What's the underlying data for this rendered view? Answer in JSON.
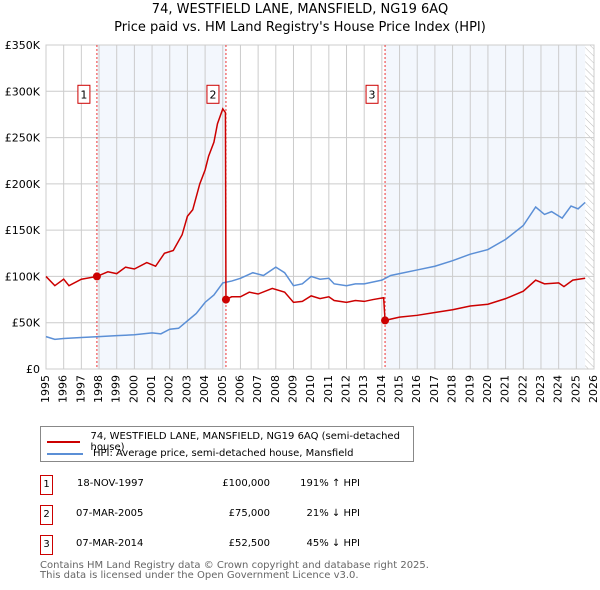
{
  "chart_data": {
    "type": "line",
    "title": "74, WESTFIELD LANE, MANSFIELD, NG19 6AQ",
    "subtitle": "Price paid vs. HM Land Registry's House Price Index (HPI)",
    "xlim": [
      1995,
      2026
    ],
    "ylim": [
      0,
      350000
    ],
    "yticks": [
      {
        "v": 0,
        "label": "£0"
      },
      {
        "v": 50000,
        "label": "£50K"
      },
      {
        "v": 100000,
        "label": "£100K"
      },
      {
        "v": 150000,
        "label": "£150K"
      },
      {
        "v": 200000,
        "label": "£200K"
      },
      {
        "v": 250000,
        "label": "£250K"
      },
      {
        "v": 300000,
        "label": "£300K"
      },
      {
        "v": 350000,
        "label": "£350K"
      }
    ],
    "xticks": [
      1995,
      1996,
      1997,
      1998,
      1999,
      2000,
      2001,
      2002,
      2003,
      2004,
      2005,
      2006,
      2007,
      2008,
      2009,
      2010,
      2011,
      2012,
      2013,
      2014,
      2015,
      2016,
      2017,
      2018,
      2019,
      2020,
      2021,
      2022,
      2023,
      2024,
      2025,
      2026
    ],
    "grid": true,
    "shaded_bands": [
      [
        1997.88,
        2005.18
      ],
      [
        2014.18,
        2025.5
      ]
    ],
    "hatched_from": 2025.5,
    "series": [
      {
        "name": "74, WESTFIELD LANE, MANSFIELD, NG19 6AQ (semi-detached house)",
        "color": "#cc0000",
        "points": [
          [
            1995,
            100000
          ],
          [
            1995.5,
            90000
          ],
          [
            1996,
            97000
          ],
          [
            1996.3,
            90000
          ],
          [
            1997,
            97000
          ],
          [
            1997.88,
            100000
          ],
          [
            1998.5,
            105000
          ],
          [
            1999,
            103000
          ],
          [
            1999.5,
            110000
          ],
          [
            2000,
            108000
          ],
          [
            2000.7,
            115000
          ],
          [
            2001.2,
            111000
          ],
          [
            2001.7,
            125000
          ],
          [
            2002.2,
            128000
          ],
          [
            2002.7,
            145000
          ],
          [
            2003,
            165000
          ],
          [
            2003.3,
            172000
          ],
          [
            2003.7,
            200000
          ],
          [
            2004,
            215000
          ],
          [
            2004.2,
            230000
          ],
          [
            2004.5,
            245000
          ],
          [
            2004.7,
            265000
          ],
          [
            2005,
            281000
          ],
          [
            2005.15,
            277000
          ],
          [
            2005.18,
            75000
          ],
          [
            2005.5,
            78000
          ],
          [
            2006,
            78000
          ],
          [
            2006.5,
            83000
          ],
          [
            2007,
            81000
          ],
          [
            2007.8,
            87000
          ],
          [
            2008.5,
            83000
          ],
          [
            2009,
            72000
          ],
          [
            2009.5,
            73000
          ],
          [
            2010,
            79000
          ],
          [
            2010.5,
            76000
          ],
          [
            2011,
            78000
          ],
          [
            2011.3,
            74000
          ],
          [
            2012,
            72000
          ],
          [
            2012.5,
            74000
          ],
          [
            2013,
            73000
          ],
          [
            2013.5,
            75000
          ],
          [
            2014.1,
            77000
          ],
          [
            2014.18,
            52500
          ],
          [
            2015,
            56000
          ],
          [
            2016,
            58000
          ],
          [
            2017,
            61000
          ],
          [
            2018,
            64000
          ],
          [
            2019,
            68000
          ],
          [
            2020,
            70000
          ],
          [
            2021,
            76000
          ],
          [
            2022,
            84000
          ],
          [
            2022.7,
            96000
          ],
          [
            2023.2,
            92000
          ],
          [
            2024,
            93000
          ],
          [
            2024.3,
            89000
          ],
          [
            2024.8,
            96000
          ],
          [
            2025.5,
            98000
          ]
        ]
      },
      {
        "name": "HPI: Average price, semi-detached house, Mansfield",
        "color": "#5b8fd6",
        "points": [
          [
            1995,
            35000
          ],
          [
            1995.5,
            32000
          ],
          [
            1996,
            33000
          ],
          [
            1997,
            34000
          ],
          [
            1998,
            35000
          ],
          [
            1999,
            36000
          ],
          [
            2000,
            37000
          ],
          [
            2001,
            39000
          ],
          [
            2001.5,
            38000
          ],
          [
            2002,
            43000
          ],
          [
            2002.5,
            44000
          ],
          [
            2003,
            52000
          ],
          [
            2003.5,
            60000
          ],
          [
            2004,
            72000
          ],
          [
            2004.5,
            80000
          ],
          [
            2005,
            93000
          ],
          [
            2005.5,
            95000
          ],
          [
            2006,
            98000
          ],
          [
            2006.7,
            104000
          ],
          [
            2007.3,
            101000
          ],
          [
            2008,
            110000
          ],
          [
            2008.5,
            104000
          ],
          [
            2009,
            90000
          ],
          [
            2009.5,
            92000
          ],
          [
            2010,
            100000
          ],
          [
            2010.5,
            97000
          ],
          [
            2011,
            98000
          ],
          [
            2011.3,
            92000
          ],
          [
            2012,
            90000
          ],
          [
            2012.5,
            92000
          ],
          [
            2013,
            92000
          ],
          [
            2014,
            96000
          ],
          [
            2014.5,
            101000
          ],
          [
            2015,
            103000
          ],
          [
            2016,
            107000
          ],
          [
            2017,
            111000
          ],
          [
            2018,
            117000
          ],
          [
            2019,
            124000
          ],
          [
            2020,
            129000
          ],
          [
            2021,
            140000
          ],
          [
            2022,
            155000
          ],
          [
            2022.7,
            175000
          ],
          [
            2023.2,
            167000
          ],
          [
            2023.6,
            170000
          ],
          [
            2024.2,
            163000
          ],
          [
            2024.7,
            176000
          ],
          [
            2025.1,
            173000
          ],
          [
            2025.5,
            180000
          ]
        ]
      }
    ],
    "sales": [
      {
        "label": "1",
        "x": 1997.88,
        "y": 100000
      },
      {
        "label": "2",
        "x": 2005.18,
        "y": 75000
      },
      {
        "label": "3",
        "x": 2014.18,
        "y": 52500
      }
    ]
  },
  "legend": {
    "red": "74, WESTFIELD LANE, MANSFIELD, NG19 6AQ (semi-detached house)",
    "blue": "HPI: Average price, semi-detached house, Mansfield"
  },
  "table": [
    {
      "num": "1",
      "date": "18-NOV-1997",
      "price": "£100,000",
      "hpi": "191% ↑ HPI"
    },
    {
      "num": "2",
      "date": "07-MAR-2005",
      "price": "£75,000",
      "hpi": "21% ↓ HPI"
    },
    {
      "num": "3",
      "date": "07-MAR-2014",
      "price": "£52,500",
      "hpi": "45% ↓ HPI"
    }
  ],
  "footer": {
    "line1": "Contains HM Land Registry data © Crown copyright and database right 2025.",
    "line2": "This data is licensed under the Open Government Licence v3.0."
  }
}
